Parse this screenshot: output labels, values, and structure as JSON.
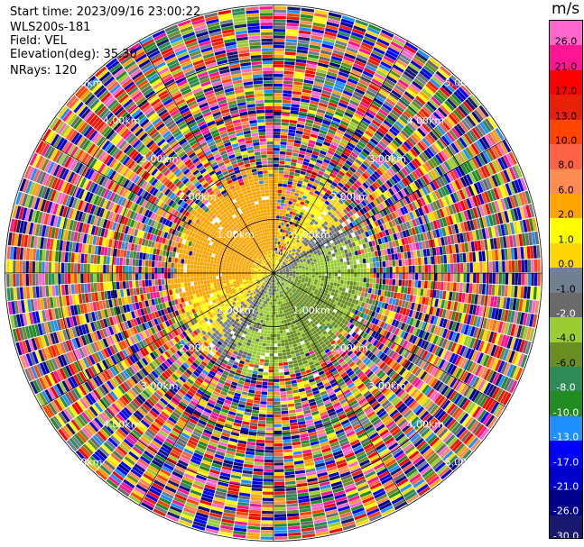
{
  "header": {
    "start_time": "Start time: 2023/09/16 23:00:22",
    "instrument": "WLS200s-181",
    "field": "Field: VEL",
    "elevation": "Elevation(deg): 35.30",
    "nrays": "NRays: 120"
  },
  "chart_data": {
    "type": "heatmap",
    "projection": "polar PPI (plan position indicator)",
    "field": "VEL",
    "units": "m/s",
    "nrays": 120,
    "elevation_deg": 35.3,
    "range_rings_km": [
      1.0,
      2.0,
      3.0,
      4.0,
      5.0
    ],
    "ring_labels": [
      "1.00km",
      "2.00km",
      "3.00km",
      "4.00km",
      "5.00km"
    ],
    "max_range_km": 5.0,
    "grid": true,
    "colorbar": {
      "unit_label": "m/s",
      "tick_labels": [
        "26.0",
        "21.0",
        "17.0",
        "13.0",
        "10.0",
        "8.0",
        "6.0",
        "2.0",
        "1.0",
        "0.0",
        "-1.0",
        "-2.0",
        "-4.0",
        "-6.0",
        "-8.0",
        "-10.0",
        "-13.0",
        "-17.0",
        "-21.0",
        "-26.0",
        "-30.0"
      ],
      "boundaries": [
        30,
        26,
        21,
        17,
        13,
        10,
        8,
        6,
        2,
        1,
        0,
        -1,
        -2,
        -4,
        -6,
        -8,
        -10,
        -13,
        -17,
        -21,
        -26,
        -30
      ],
      "colors": [
        "#ff66cc",
        "#ff1493",
        "#ff0000",
        "#e8200a",
        "#ff4500",
        "#ff6347",
        "#ff8c52",
        "#ffa500",
        "#ffff00",
        "#ffd700",
        "#708090",
        "#6a6a6a",
        "#9acd32",
        "#6b8e23",
        "#2e8b57",
        "#228b22",
        "#1e90ff",
        "#0000ff",
        "#0000cd",
        "#00008b",
        "#191970"
      ],
      "label_colors": [
        "#000000",
        "#000000",
        "#000000",
        "#000000",
        "#000000",
        "#000000",
        "#000000",
        "#000000",
        "#000000",
        "#000000",
        "#000000",
        "#ffffff",
        "#000000",
        "#000000",
        "#ffffff",
        "#ffffff",
        "#ffffff",
        "#ffffff",
        "#ffffff",
        "#ffffff",
        "#ffffff"
      ]
    },
    "velocity_pattern": {
      "north_west_approaching": "positive 2 to 6 m/s (yellow/orange) within ~1.7 km",
      "south_east_receding": "negative -2 to -8 m/s (greens) within ~1.7 km",
      "north_east_and_south_west": "near zero (grey) and light negative",
      "beyond_2km": "noise / mixed colors"
    }
  }
}
